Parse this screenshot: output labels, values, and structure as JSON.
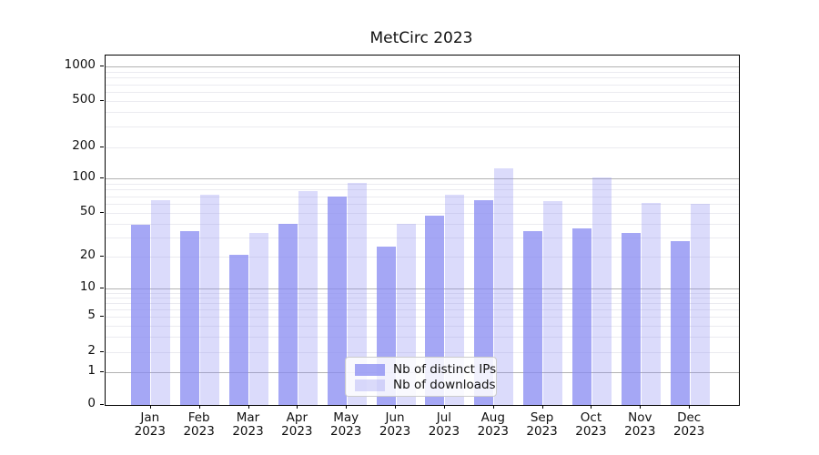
{
  "figure": {
    "title": "MetCirc 2023"
  },
  "chart_data": {
    "type": "bar",
    "title": "MetCirc 2023",
    "categories": [
      "Jan 2023",
      "Feb 2023",
      "Mar 2023",
      "Apr 2023",
      "May 2023",
      "Jun 2023",
      "Jul 2023",
      "Aug 2023",
      "Sep 2023",
      "Oct 2023",
      "Nov 2023",
      "Dec 2023"
    ],
    "series": [
      {
        "name": "Nb of distinct IPs",
        "color": "rgba(135,137,242,0.75)",
        "values": [
          39,
          34,
          21,
          40,
          70,
          25,
          47,
          65,
          34,
          36,
          33,
          28
        ]
      },
      {
        "name": "Nb of downloads",
        "color": "rgba(135,137,242,0.30)",
        "values": [
          64,
          72,
          33,
          78,
          92,
          40,
          72,
          125,
          63,
          103,
          61,
          60
        ]
      }
    ],
    "xlabel": "",
    "ylabel": "",
    "yscale": "symlog",
    "y_ticks": [
      0,
      1,
      2,
      5,
      10,
      20,
      50,
      100,
      200,
      500,
      1000
    ],
    "y_minor_ticks": [
      3,
      4,
      6,
      7,
      8,
      9,
      30,
      40,
      60,
      70,
      80,
      90,
      300,
      400,
      600,
      700,
      800,
      900
    ],
    "grid": true,
    "legend": {
      "position": "lower center",
      "items": [
        "Nb of distinct IPs",
        "Nb of downloads"
      ]
    },
    "colors": {
      "bar_base": "#8789f2",
      "major_grid": "#b3b3b3",
      "minor_grid": "#ebebf0",
      "spine": "#000000"
    }
  }
}
